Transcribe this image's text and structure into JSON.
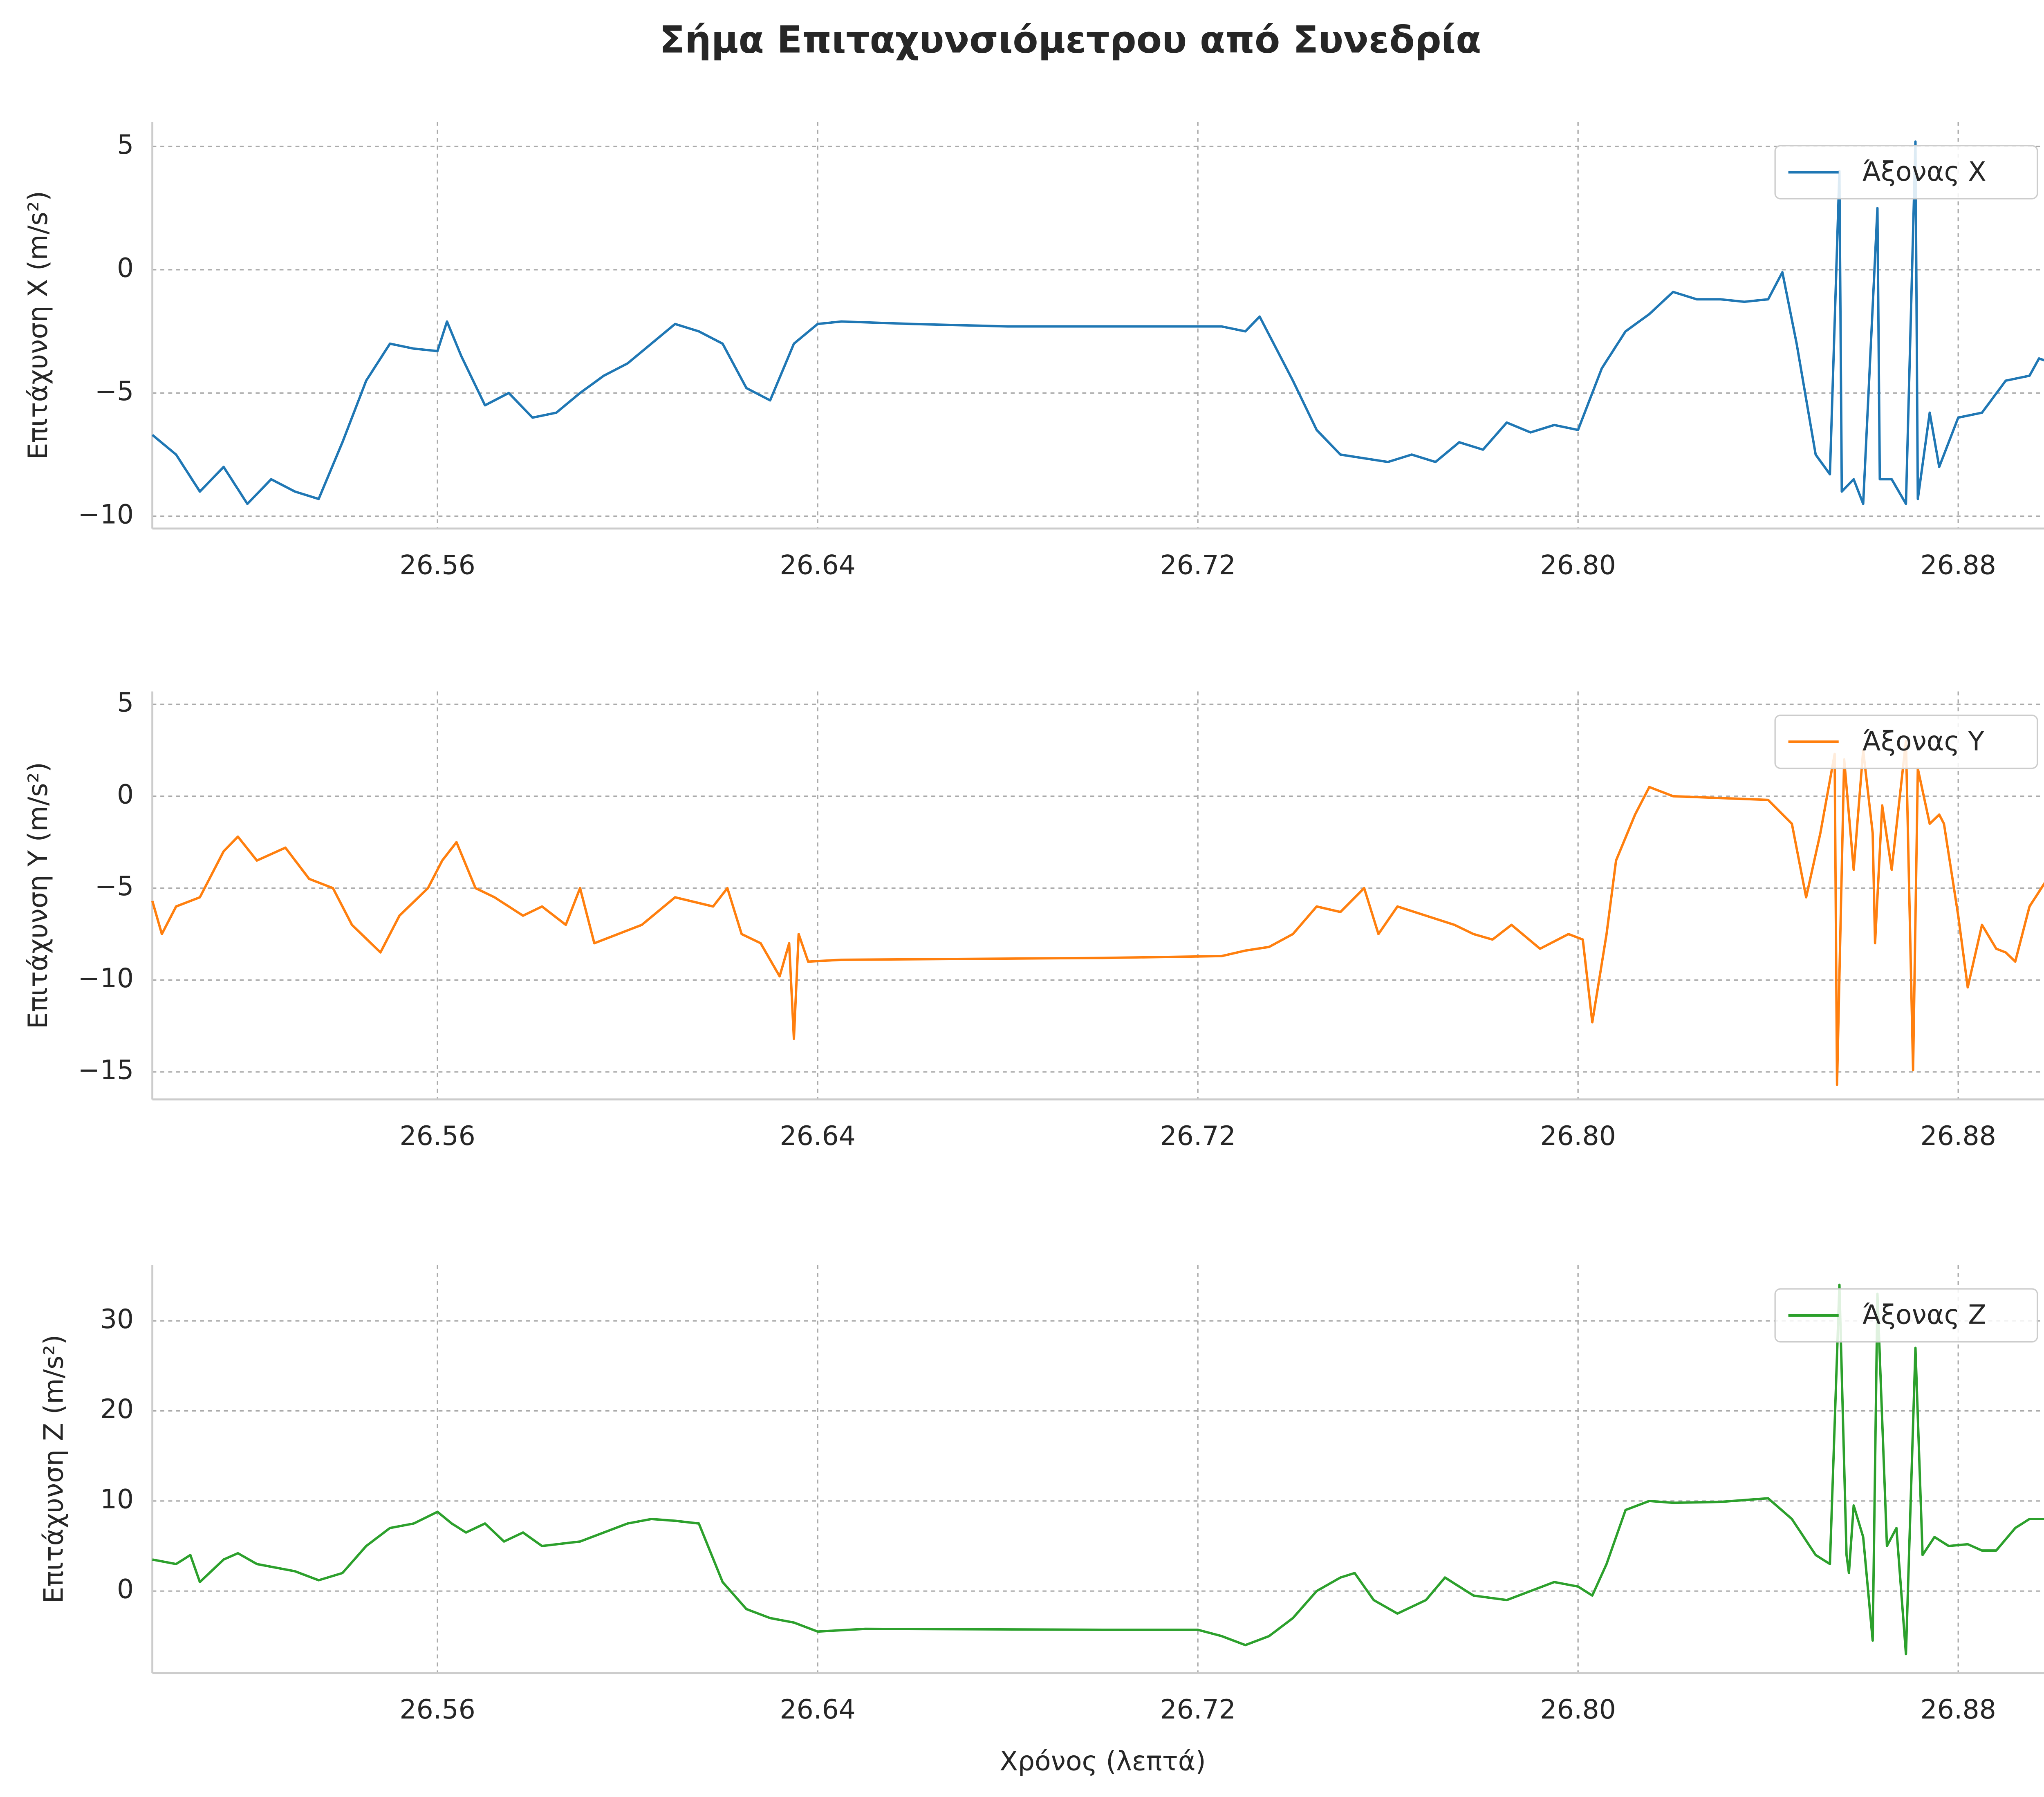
{
  "title": "Σήμα Επιταχυνσιόμετρου από Συνεδρία",
  "chart_data": [
    {
      "type": "line",
      "ylabel": "Επιτάχυνση X (m/s²)",
      "grid": true,
      "legend": "upper right",
      "xlim": [
        26.5,
        26.9
      ],
      "ylim": [
        -10.5,
        6
      ],
      "xticks": [
        26.56,
        26.64,
        26.72,
        {
          "value": 26.8,
          "label": "26.80"
        },
        26.88
      ],
      "yticks": [
        {
          "value": -10,
          "label": "−10"
        },
        {
          "value": -5,
          "label": "−5"
        },
        0,
        5
      ],
      "x": [
        26.5,
        26.505,
        26.51,
        26.515,
        26.52,
        26.525,
        26.53,
        26.535,
        26.54,
        26.545,
        26.55,
        26.555,
        26.56,
        26.562,
        26.565,
        26.57,
        26.575,
        26.58,
        26.585,
        26.59,
        26.595,
        26.6,
        26.605,
        26.61,
        26.615,
        26.62,
        26.625,
        26.63,
        26.635,
        26.64,
        26.645,
        26.66,
        26.68,
        26.7,
        26.725,
        26.73,
        26.733,
        26.74,
        26.745,
        26.75,
        26.76,
        26.765,
        26.77,
        26.775,
        26.78,
        26.785,
        26.79,
        26.795,
        26.8,
        26.805,
        26.81,
        26.815,
        26.82,
        26.825,
        26.83,
        26.835,
        26.84,
        26.843,
        26.846,
        26.85,
        26.853,
        26.855,
        26.8555,
        26.858,
        26.86,
        26.863,
        26.8635,
        26.866,
        26.869,
        26.871,
        26.8715,
        26.874,
        26.876,
        26.88,
        26.885,
        26.89,
        26.895,
        26.897,
        26.9
      ],
      "series": [
        {
          "name": "Άξονας X",
          "color": "#1f77b4",
          "values": [
            -6.7,
            -7.5,
            -9,
            -8,
            -9.5,
            -8.5,
            -9,
            -9.3,
            -7,
            -4.5,
            -3,
            -3.2,
            -3.3,
            -2.1,
            -3.5,
            -5.5,
            -5,
            -6,
            -5.8,
            -5,
            -4.3,
            -3.8,
            -3,
            -2.2,
            -2.5,
            -3,
            -4.8,
            -5.3,
            -3,
            -2.2,
            -2.1,
            -2.2,
            -2.3,
            -2.3,
            -2.3,
            -2.5,
            -1.9,
            -4.5,
            -6.5,
            -7.5,
            -7.8,
            -7.5,
            -7.8,
            -7,
            -7.3,
            -6.2,
            -6.6,
            -6.3,
            -6.5,
            -4,
            -2.5,
            -1.8,
            -0.9,
            -1.2,
            -1.2,
            -1.3,
            -1.2,
            -0.1,
            -3,
            -7.5,
            -8.3,
            4,
            -9,
            -8.5,
            -9.5,
            2.5,
            -8.5,
            -8.5,
            -9.5,
            5.2,
            -9.3,
            -5.8,
            -8,
            -6,
            -5.8,
            -4.5,
            -4.3,
            -3.6,
            -3.8
          ]
        }
      ]
    },
    {
      "type": "line",
      "ylabel": "Επιτάχυνση Y (m/s²)",
      "grid": true,
      "legend": "upper right",
      "xlim": [
        26.5,
        26.9
      ],
      "ylim": [
        -16.5,
        5.7
      ],
      "xticks": [
        26.56,
        26.64,
        26.72,
        {
          "value": 26.8,
          "label": "26.80"
        },
        26.88
      ],
      "yticks": [
        {
          "value": -15,
          "label": "−15"
        },
        {
          "value": -10,
          "label": "−10"
        },
        {
          "value": -5,
          "label": "−5"
        },
        0,
        5
      ],
      "x": [
        26.5,
        26.502,
        26.505,
        26.51,
        26.515,
        26.518,
        26.522,
        26.528,
        26.533,
        26.538,
        26.542,
        26.548,
        26.552,
        26.558,
        26.561,
        26.564,
        26.568,
        26.572,
        26.578,
        26.582,
        26.587,
        26.59,
        26.593,
        26.598,
        26.603,
        26.61,
        26.618,
        26.621,
        26.624,
        26.628,
        26.632,
        26.634,
        26.635,
        26.636,
        26.638,
        26.645,
        26.7,
        26.725,
        26.73,
        26.735,
        26.74,
        26.745,
        26.75,
        26.755,
        26.758,
        26.762,
        26.768,
        26.774,
        26.778,
        26.782,
        26.786,
        26.792,
        26.798,
        26.801,
        26.803,
        26.806,
        26.808,
        26.812,
        26.815,
        26.82,
        26.83,
        26.84,
        26.845,
        26.848,
        26.851,
        26.854,
        26.8545,
        26.856,
        26.858,
        26.86,
        26.862,
        26.8625,
        26.864,
        26.866,
        26.869,
        26.8705,
        26.8715,
        26.874,
        26.876,
        26.877,
        26.88,
        26.882,
        26.885,
        26.888,
        26.89,
        26.892,
        26.895,
        26.9
      ],
      "series": [
        {
          "name": "Άξονας Y",
          "color": "#ff7f0e",
          "values": [
            -5.7,
            -7.5,
            -6,
            -5.5,
            -3,
            -2.2,
            -3.5,
            -2.8,
            -4.5,
            -5,
            -7,
            -8.5,
            -6.5,
            -5,
            -3.5,
            -2.5,
            -5,
            -5.5,
            -6.5,
            -6,
            -7,
            -5,
            -8,
            -7.5,
            -7,
            -5.5,
            -6,
            -5,
            -7.5,
            -8,
            -9.8,
            -8,
            -13.2,
            -7.5,
            -9,
            -8.9,
            -8.8,
            -8.7,
            -8.4,
            -8.2,
            -7.5,
            -6,
            -6.3,
            -5,
            -7.5,
            -6,
            -6.5,
            -7,
            -7.5,
            -7.8,
            -7,
            -8.3,
            -7.5,
            -7.8,
            -12.3,
            -7.5,
            -3.5,
            -1,
            0.5,
            0,
            -0.1,
            -0.2,
            -1.5,
            -5.5,
            -2,
            2.3,
            -15.7,
            2,
            -4,
            2.5,
            -2,
            -8,
            -0.5,
            -4,
            3,
            -14.9,
            1.5,
            -1.5,
            -1,
            -1.5,
            -6.5,
            -10.4,
            -7,
            -8.3,
            -8.5,
            -9,
            -6,
            -4
          ]
        }
      ]
    },
    {
      "type": "line",
      "ylabel": "Επιτάχυνση Z (m/s²)",
      "xlabel": "Χρόνος (λεπτά)",
      "grid": true,
      "legend": "upper right",
      "xlim": [
        26.5,
        26.9
      ],
      "ylim": [
        -9.1,
        36.2
      ],
      "xticks": [
        26.56,
        26.64,
        26.72,
        {
          "value": 26.8,
          "label": "26.80"
        },
        26.88
      ],
      "yticks": [
        0,
        10,
        20,
        30
      ],
      "x": [
        26.5,
        26.505,
        26.508,
        26.51,
        26.515,
        26.518,
        26.522,
        26.53,
        26.535,
        26.54,
        26.545,
        26.55,
        26.555,
        26.56,
        26.563,
        26.566,
        26.57,
        26.574,
        26.578,
        26.582,
        26.59,
        26.595,
        26.6,
        26.605,
        26.61,
        26.615,
        26.62,
        26.625,
        26.63,
        26.635,
        26.64,
        26.65,
        26.7,
        26.72,
        26.725,
        26.73,
        26.735,
        26.74,
        26.745,
        26.75,
        26.753,
        26.757,
        26.762,
        26.768,
        26.772,
        26.778,
        26.785,
        26.79,
        26.795,
        26.8,
        26.803,
        26.806,
        26.81,
        26.815,
        26.82,
        26.83,
        26.84,
        26.845,
        26.85,
        26.853,
        26.855,
        26.8565,
        26.857,
        26.858,
        26.86,
        26.862,
        26.863,
        26.865,
        26.867,
        26.869,
        26.871,
        26.8725,
        26.875,
        26.878,
        26.882,
        26.885,
        26.888,
        26.892,
        26.895,
        26.9
      ],
      "series": [
        {
          "name": "Άξονας Z",
          "color": "#2ca02c",
          "values": [
            3.5,
            3,
            4,
            1,
            3.5,
            4.2,
            3,
            2.2,
            1.2,
            2,
            5,
            7,
            7.5,
            8.8,
            7.5,
            6.5,
            7.5,
            5.5,
            6.5,
            5,
            5.5,
            6.5,
            7.5,
            8,
            7.8,
            7.5,
            1,
            -2,
            -3,
            -3.5,
            -4.5,
            -4.2,
            -4.3,
            -4.3,
            -5,
            -6,
            -5,
            -3,
            0,
            1.5,
            2,
            -1,
            -2.5,
            -1,
            1.5,
            -0.5,
            -1,
            0,
            1,
            0.5,
            -0.5,
            3,
            9,
            10,
            9.8,
            9.9,
            10.3,
            8,
            4,
            3,
            34,
            4,
            2,
            9.5,
            6,
            -5.5,
            33,
            5,
            7,
            -7,
            27,
            4,
            6,
            5,
            5.2,
            4.5,
            4.5,
            7,
            8,
            8
          ]
        }
      ]
    }
  ]
}
